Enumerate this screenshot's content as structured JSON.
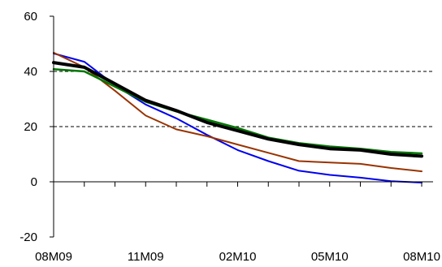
{
  "chart_data": {
    "type": "line",
    "x": [
      "08M09",
      "09M09",
      "10M09",
      "11M09",
      "12M09",
      "01M10",
      "02M10",
      "03M10",
      "04M10",
      "05M10",
      "06M10",
      "07M10",
      "08M10"
    ],
    "x_tick_labels": [
      "08M09",
      "11M09",
      "02M10",
      "05M10",
      "08M10"
    ],
    "ylim": [
      -20,
      60
    ],
    "y_ticks": [
      -20,
      0,
      20,
      40,
      60
    ],
    "gridlines_dashed": [
      20,
      40
    ],
    "series": [
      {
        "color": "#0000ee",
        "width": 2,
        "values": [
          46.5,
          43.5,
          35.0,
          28.0,
          23.0,
          17.0,
          11.5,
          7.5,
          4.0,
          2.5,
          1.5,
          0.2,
          -0.3
        ]
      },
      {
        "color": "#993300",
        "width": 2,
        "values": [
          46.8,
          41.5,
          33.0,
          24.0,
          19.0,
          16.5,
          13.5,
          10.5,
          7.5,
          7.0,
          6.5,
          5.0,
          3.8
        ]
      },
      {
        "color": "#007700",
        "width": 2.5,
        "values": [
          40.8,
          40.0,
          34.5,
          29.0,
          25.5,
          22.5,
          19.5,
          16.0,
          14.0,
          12.8,
          12.0,
          10.8,
          10.3
        ]
      },
      {
        "color": "#000000",
        "width": 4,
        "values": [
          43.2,
          41.5,
          35.5,
          29.5,
          25.8,
          21.5,
          18.5,
          15.5,
          13.5,
          12.0,
          11.5,
          10.0,
          9.3
        ]
      }
    ]
  }
}
